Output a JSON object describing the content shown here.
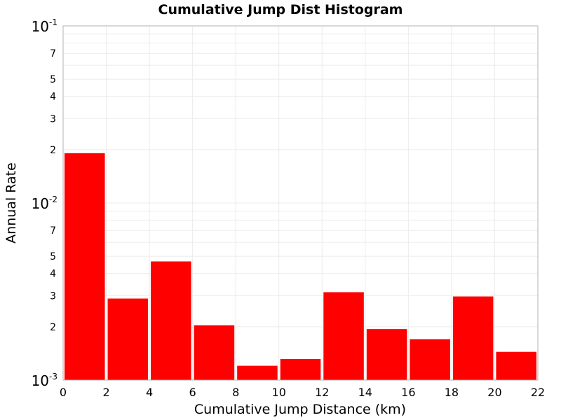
{
  "chart_data": {
    "type": "bar",
    "title": "Cumulative Jump Dist Histogram",
    "xlabel": "Cumulative Jump Distance (km)",
    "ylabel": "Annual Rate",
    "xlim": [
      0,
      22
    ],
    "ylim": [
      0.001,
      0.1
    ],
    "y_scale": "log",
    "grid": true,
    "legend": "none",
    "bar_color": "#ff0000",
    "x_ticks": [
      "0",
      "2",
      "4",
      "6",
      "8",
      "10",
      "12",
      "14",
      "16",
      "18",
      "20",
      "22"
    ],
    "y_decade_ticks": [
      {
        "value": 0.1,
        "base": "10",
        "exp": "-1"
      },
      {
        "value": 0.01,
        "base": "10",
        "exp": "-2"
      },
      {
        "value": 0.001,
        "base": "10",
        "exp": "-3"
      }
    ],
    "y_minor_ticks": [
      {
        "value": 0.07,
        "label": "7"
      },
      {
        "value": 0.05,
        "label": "5"
      },
      {
        "value": 0.04,
        "label": "4"
      },
      {
        "value": 0.03,
        "label": "3"
      },
      {
        "value": 0.02,
        "label": "2"
      },
      {
        "value": 0.007,
        "label": "7"
      },
      {
        "value": 0.005,
        "label": "5"
      },
      {
        "value": 0.004,
        "label": "4"
      },
      {
        "value": 0.003,
        "label": "3"
      },
      {
        "value": 0.002,
        "label": "2"
      }
    ],
    "bins": [
      {
        "x0": 0,
        "x1": 2,
        "value": 0.0192
      },
      {
        "x0": 2,
        "x1": 4,
        "value": 0.0029
      },
      {
        "x0": 4,
        "x1": 6,
        "value": 0.0047
      },
      {
        "x0": 6,
        "x1": 8,
        "value": 0.00205
      },
      {
        "x0": 8,
        "x1": 10,
        "value": 0.00121
      },
      {
        "x0": 10,
        "x1": 12,
        "value": 0.00132
      },
      {
        "x0": 12,
        "x1": 14,
        "value": 0.00315
      },
      {
        "x0": 14,
        "x1": 16,
        "value": 0.00195
      },
      {
        "x0": 16,
        "x1": 18,
        "value": 0.00171
      },
      {
        "x0": 18,
        "x1": 20,
        "value": 0.00298
      },
      {
        "x0": 20,
        "x1": 22,
        "value": 0.00145
      }
    ]
  }
}
